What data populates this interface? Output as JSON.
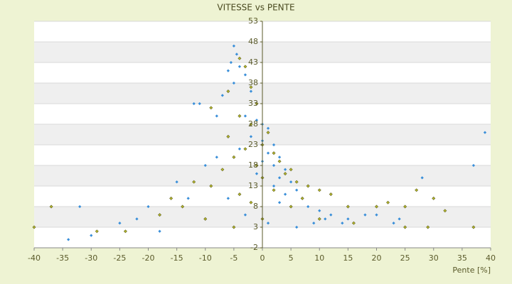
{
  "chart_data": {
    "type": "scatter",
    "title": "VITESSE vs PENTE",
    "x_label": "Pente [%]",
    "xlim": [
      -40,
      40
    ],
    "xticks": [
      -40,
      -35,
      -30,
      -25,
      -20,
      -15,
      -10,
      -5,
      0,
      5,
      10,
      15,
      20,
      25,
      30,
      35,
      40
    ],
    "ylim": [
      -2,
      53
    ],
    "yticks": [
      -2,
      3,
      8,
      13,
      18,
      23,
      28,
      33,
      38,
      43,
      48,
      53
    ],
    "grid": true,
    "series": [
      {
        "color": "#3a8fd9",
        "x": [
          -5,
          -4.5,
          -5.5,
          -4,
          -6,
          -3,
          -5,
          -2,
          -7,
          -11,
          -12,
          -8,
          -3,
          -1,
          0,
          1,
          -2,
          0,
          2,
          -4,
          1,
          3,
          0,
          2,
          4,
          -1,
          3,
          5,
          2,
          6,
          4,
          7,
          3,
          8,
          10,
          12,
          15,
          18,
          11,
          5,
          -8,
          -10,
          -15,
          -20,
          -22,
          -25,
          -30,
          -34,
          -32,
          -18,
          -13,
          -6,
          -3,
          1,
          9,
          20,
          24,
          28,
          37,
          39,
          23,
          14,
          6
        ],
        "values": [
          47,
          45,
          43,
          42,
          41,
          40,
          38,
          36,
          35,
          33,
          33,
          30,
          30,
          29,
          28,
          27,
          25,
          24,
          23,
          22,
          21,
          20,
          19,
          18,
          17,
          16,
          15,
          14,
          13,
          12,
          11,
          10,
          9,
          8,
          7,
          6,
          5,
          6,
          5,
          8,
          20,
          18,
          14,
          8,
          5,
          4,
          1,
          0,
          8,
          2,
          10,
          10,
          6,
          4,
          4,
          6,
          5,
          15,
          18,
          26,
          4,
          4,
          3
        ]
      },
      {
        "color": "#b3b52c",
        "x": [
          -4,
          -3,
          -2,
          -6,
          -1,
          -9,
          -4,
          -2,
          1,
          -6,
          0,
          -3,
          2,
          -5,
          3,
          -1,
          5,
          -7,
          4,
          0,
          -12,
          6,
          -9,
          8,
          2,
          10,
          -4,
          12,
          7,
          -2,
          15,
          5,
          -14,
          20,
          22,
          25,
          30,
          32,
          27,
          -16,
          -18,
          -24,
          -29,
          -37,
          -40,
          29,
          37,
          -10,
          -5,
          0,
          10,
          16,
          25
        ],
        "values": [
          44,
          42,
          37,
          36,
          33,
          32,
          30,
          28,
          26,
          25,
          23,
          22,
          21,
          20,
          19,
          18,
          17,
          17,
          16,
          15,
          14,
          14,
          13,
          13,
          12,
          12,
          11,
          11,
          10,
          9,
          8,
          8,
          8,
          8,
          9,
          8,
          10,
          7,
          12,
          10,
          6,
          2,
          2,
          8,
          3,
          3,
          3,
          5,
          3,
          5,
          5,
          4,
          3
        ]
      }
    ]
  }
}
